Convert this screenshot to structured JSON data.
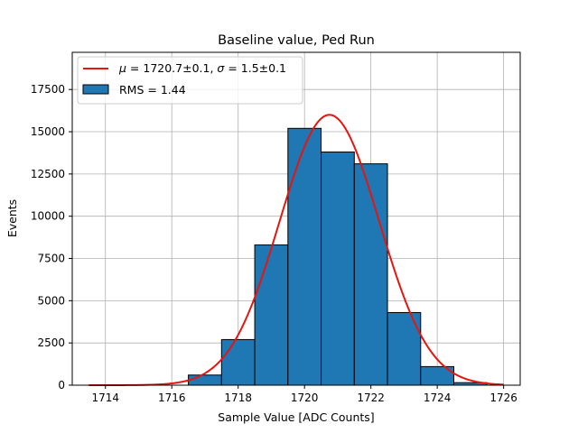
{
  "chart_data": {
    "type": "bar",
    "title": "Baseline value, Ped Run",
    "xlabel": "Sample Value [ADC Counts]",
    "ylabel": "Events",
    "xlim": [
      1713,
      1726.5
    ],
    "ylim": [
      0,
      19700
    ],
    "xticks": [
      1714,
      1716,
      1718,
      1720,
      1722,
      1724,
      1726
    ],
    "xtick_labels": [
      "1714",
      "1716",
      "1718",
      "1720",
      "1722",
      "1724",
      "1726"
    ],
    "yticks": [
      0,
      2500,
      5000,
      7500,
      10000,
      12500,
      15000,
      17500
    ],
    "ytick_labels": [
      "0",
      "2500",
      "5000",
      "7500",
      "10000",
      "12500",
      "15000",
      "17500"
    ],
    "grid": true,
    "legend_position": "top-left",
    "histogram": {
      "name": "RMS = 1.44",
      "color": "#1f77b4",
      "edge_color": "#000000",
      "bin_edges": [
        1713.5,
        1714.5,
        1715.5,
        1716.5,
        1717.5,
        1718.5,
        1719.5,
        1720.5,
        1721.5,
        1722.5,
        1723.5,
        1724.5,
        1725.5,
        1726.5
      ],
      "counts": [
        0,
        0,
        0,
        600,
        2700,
        8300,
        15200,
        13800,
        13100,
        4300,
        1100,
        150,
        0
      ]
    },
    "fit": {
      "name": "$\\mu = 1720.7 \\pm 0.1$, $\\sigma = 1.5 \\pm 0.1$",
      "color": "#e8140f",
      "type": "gaussian",
      "mu": 1720.75,
      "sigma": 1.5,
      "amplitude": 16000,
      "x_range": [
        1713.5,
        1726
      ]
    }
  }
}
